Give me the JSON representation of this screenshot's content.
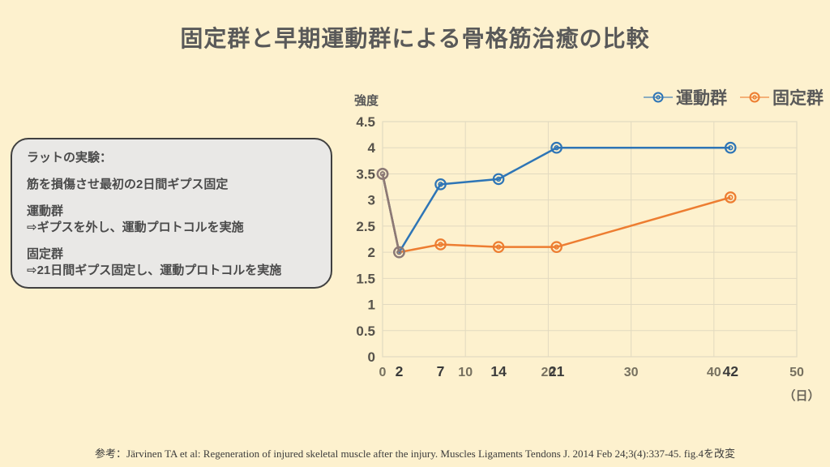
{
  "page": {
    "title": "固定群と早期運動群による骨格筋治癒の比較",
    "background": "#FDF1CE",
    "text_color": "#595959"
  },
  "info_box": {
    "background": "#E9E8E6",
    "border_color": "#404040",
    "paragraphs": [
      [
        "ラットの実験："
      ],
      [
        "筋を損傷させ最初の2日間ギプス固定"
      ],
      [
        "運動群",
        "⇨ギプスを外し、運動プロトコルを実施"
      ],
      [
        "固定群",
        "⇨21日間ギプス固定し、運動プロトコルを実施"
      ]
    ]
  },
  "chart_data": {
    "type": "line",
    "title": "",
    "ylabel": "強度",
    "xlabel": "（日）",
    "x": [
      0,
      2,
      7,
      14,
      21,
      42
    ],
    "series": [
      {
        "name": "運動群",
        "color": "#2E75B6",
        "values": [
          3.5,
          2,
          3.3,
          3.4,
          4,
          4
        ]
      },
      {
        "name": "固定群",
        "color": "#ED7D31",
        "values": [
          3.5,
          2,
          2.15,
          2.1,
          2.1,
          3.05
        ]
      }
    ],
    "xlim": [
      0,
      50
    ],
    "ylim": [
      0,
      4.5
    ],
    "x_major_ticks": [
      0,
      10,
      20,
      30,
      40,
      50
    ],
    "x_data_ticks": [
      2,
      7,
      14,
      21,
      42
    ],
    "y_ticks": [
      0,
      0.5,
      1,
      1.5,
      2,
      2.5,
      3,
      3.5,
      4,
      4.5
    ],
    "grid": true,
    "grid_color": "#E2DAC0",
    "legend_position": "top-right"
  },
  "footer": {
    "citation": "参考：Järvinen TA et al: Regeneration of injured skeletal muscle after the injury. Muscles Ligaments Tendons J. 2014 Feb 24;3(4):337-45. fig.4を改変"
  }
}
